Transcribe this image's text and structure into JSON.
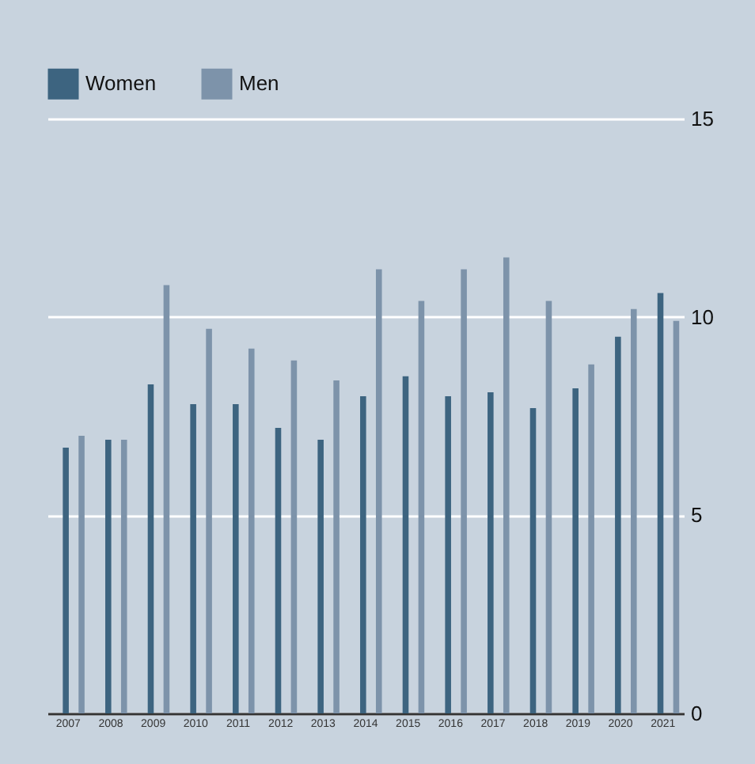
{
  "chart_data": {
    "type": "bar",
    "categories": [
      "2007",
      "2008",
      "2009",
      "2010",
      "2011",
      "2012",
      "2013",
      "2014",
      "2015",
      "2016",
      "2017",
      "2018",
      "2019",
      "2020",
      "2021"
    ],
    "series": [
      {
        "name": "Women",
        "color": "#3d6480",
        "values": [
          6.7,
          6.9,
          8.3,
          7.8,
          7.8,
          7.2,
          6.9,
          8.0,
          8.5,
          8.0,
          8.1,
          7.7,
          8.2,
          9.5,
          10.6
        ]
      },
      {
        "name": "Men",
        "color": "#7d93aa",
        "values": [
          7.0,
          6.9,
          10.8,
          9.7,
          9.2,
          8.9,
          8.4,
          11.2,
          10.4,
          11.2,
          11.5,
          10.4,
          8.8,
          10.2,
          9.9
        ]
      }
    ],
    "ylim": [
      0,
      15
    ],
    "yticks": [
      0,
      5,
      10,
      15
    ],
    "grid": "y",
    "legend": "top"
  }
}
